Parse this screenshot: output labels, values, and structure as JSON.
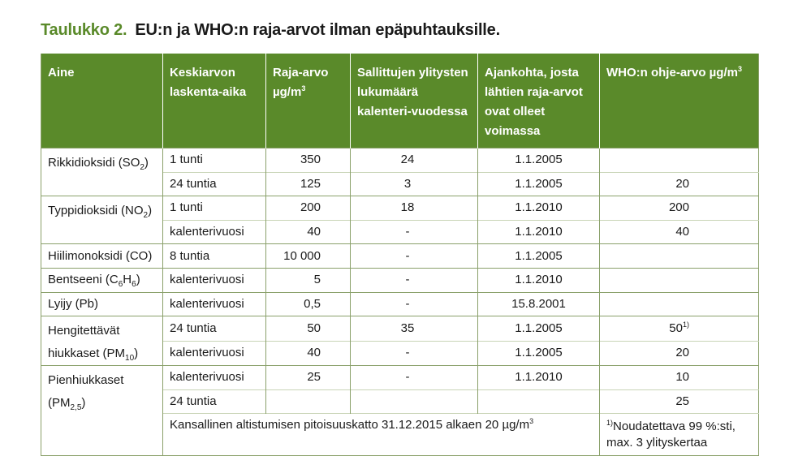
{
  "caption": {
    "number": "Taulukko 2.",
    "title": "EU:n ja WHO:n raja-arvot ilman epäpuhtauksille."
  },
  "colors": {
    "header_bg": "#5a8a2a",
    "caption_number": "#5a8a2a"
  },
  "headers": {
    "aine": "Aine",
    "keskiarvon": "Keskiarvon laskenta-aika",
    "raja_arvo_a": "Raja-arvo",
    "raja_arvo_unit": "µg/m",
    "sallittujen": "Sallittujen ylitysten lukumäärä kalenteri-vuodessa",
    "ajankohta": "Ajankohta, josta lähtien raja-arvot ovat olleet voimassa",
    "who": "WHO:n ohje-arvo µg/m",
    "sup3": "3"
  },
  "substances": {
    "so2_a": "Rikkidioksidi (SO",
    "so2_sub": "2",
    "so2_b": ")",
    "no2_a": "Typpidioksidi (NO",
    "no2_sub": "2",
    "no2_b": ")",
    "co": "Hiilimonoksidi (CO)",
    "c6h6_a": "Bentseeni (C",
    "c6h6_sub1": "6",
    "c6h6_mid": "H",
    "c6h6_sub2": "6",
    "c6h6_b": ")",
    "pb": "Lyijy (Pb)",
    "pm10_a": "Hengitettävät hiukkaset (PM",
    "pm10_sub": "10",
    "pm10_b": ")",
    "pm25_a": "Pienhiukkaset (PM",
    "pm25_sub": "2,5",
    "pm25_b": ")"
  },
  "rows": [
    {
      "period": "1 tunti",
      "limit": "350",
      "count": "24",
      "date": "1.1.2005",
      "who": ""
    },
    {
      "period": "24 tuntia",
      "limit": "125",
      "count": "3",
      "date": "1.1.2005",
      "who": "20"
    },
    {
      "period": "1 tunti",
      "limit": "200",
      "count": "18",
      "date": "1.1.2010",
      "who": "200"
    },
    {
      "period": "kalenterivuosi",
      "limit": "40",
      "count": "-",
      "date": "1.1.2010",
      "who": "40"
    },
    {
      "period": "8 tuntia",
      "limit": "10 000",
      "count": "-",
      "date": "1.1.2005",
      "who": ""
    },
    {
      "period": "kalenterivuosi",
      "limit": "5",
      "count": "-",
      "date": "1.1.2010",
      "who": ""
    },
    {
      "period": "kalenterivuosi",
      "limit": "0,5",
      "count": "-",
      "date": "15.8.2001",
      "who": ""
    },
    {
      "period": "24 tuntia",
      "limit": "50",
      "count": "35",
      "date": "1.1.2005",
      "who": "50",
      "who_sup": "1)"
    },
    {
      "period": "kalenterivuosi",
      "limit": "40",
      "count": "-",
      "date": "1.1.2005",
      "who": "20"
    },
    {
      "period": "kalenterivuosi",
      "limit": "25",
      "count": "-",
      "date": "1.1.2010",
      "who": "10"
    },
    {
      "period": "24 tuntia",
      "limit": "",
      "count": "",
      "date": "",
      "who": "25"
    }
  ],
  "footer": {
    "national": "Kansallinen altistumisen pitoisuuskatto 31.12.2015 alkaen 20 µg/m",
    "national_sup": "3",
    "note_sup": "1)",
    "note": "Noudatettava 99 %:sti, max. 3 ylityskertaa"
  }
}
